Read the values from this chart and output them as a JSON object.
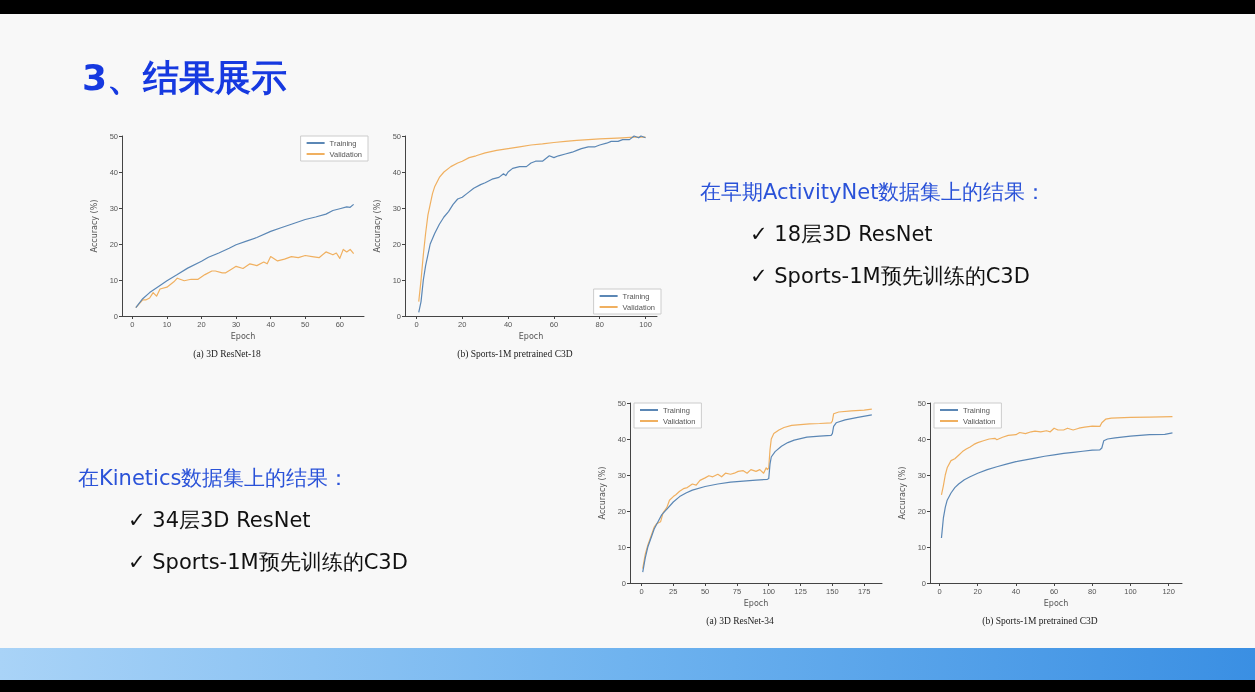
{
  "chart_data": [
    {
      "type": "other",
      "title": "3、结果展示"
    },
    {
      "type": "line",
      "title": "(a) 3D ResNet-18",
      "xlabel": "Epoch",
      "ylabel": "Accuracy (%)",
      "xlim": [
        -3,
        67
      ],
      "xticks": [
        0,
        10,
        20,
        30,
        40,
        50,
        60
      ],
      "ylim": [
        0,
        50
      ],
      "yticks": [
        0,
        10,
        20,
        30,
        40,
        50
      ],
      "legend": "top right",
      "series": [
        {
          "name": "Training",
          "color": "#5b87b5",
          "x": [
            1,
            3,
            5,
            8,
            10,
            13,
            16,
            20,
            22,
            25,
            28,
            30,
            33,
            36,
            40,
            43,
            46,
            50,
            53,
            56,
            58,
            60,
            62,
            63,
            64
          ],
          "values": [
            2.3,
            4.8,
            6.5,
            8.5,
            9.8,
            11.5,
            13.3,
            15.2,
            16.3,
            17.5,
            18.8,
            19.8,
            20.8,
            21.8,
            23.5,
            24.5,
            25.5,
            26.8,
            27.5,
            28.3,
            29.3,
            29.8,
            30.3,
            30.2,
            31
          ]
        },
        {
          "name": "Validation",
          "color": "#f0b060",
          "x": [
            1,
            3,
            4,
            5,
            6,
            7,
            8,
            10,
            12,
            13,
            15,
            17,
            19,
            21,
            23,
            24,
            26,
            27,
            29,
            30,
            32,
            34,
            36,
            38,
            39,
            40,
            42,
            44,
            46,
            48,
            50,
            52,
            54,
            56,
            58,
            59,
            60,
            61,
            62,
            63,
            64
          ],
          "values": [
            2.3,
            4.5,
            4.5,
            5,
            6.5,
            5.5,
            7.5,
            8,
            9.5,
            10.5,
            9.8,
            10.2,
            10.2,
            11.5,
            12.5,
            12.5,
            12,
            12,
            13.2,
            13.8,
            13.2,
            14.5,
            14,
            15,
            14.5,
            16.5,
            15.3,
            15.8,
            16.5,
            16.2,
            16.8,
            16.5,
            16.2,
            17.8,
            17,
            17.5,
            16,
            18.5,
            17.8,
            18.5,
            17.3
          ]
        }
      ]
    },
    {
      "type": "line",
      "title": "(b) Sports-1M pretrained C3D",
      "xlabel": "Epoch",
      "ylabel": "Accuracy (%)",
      "xlim": [
        -5,
        105
      ],
      "xticks": [
        0,
        20,
        40,
        60,
        80,
        100
      ],
      "ylim": [
        0,
        50
      ],
      "yticks": [
        0,
        10,
        20,
        30,
        40,
        50
      ],
      "legend": "bottom right",
      "series": [
        {
          "name": "Training",
          "color": "#5b87b5",
          "x": [
            1,
            2,
            3,
            4,
            5,
            6,
            8,
            10,
            12,
            14,
            16,
            18,
            20,
            22,
            25,
            28,
            30,
            33,
            36,
            38,
            39,
            40,
            42,
            45,
            48,
            50,
            52,
            55,
            58,
            60,
            62,
            65,
            68,
            70,
            72,
            75,
            78,
            80,
            83,
            85,
            88,
            90,
            93,
            95,
            97,
            98,
            100
          ],
          "values": [
            1,
            4,
            10,
            14,
            17,
            20,
            23,
            25.5,
            27.5,
            29,
            31,
            32.5,
            33,
            34,
            35.5,
            36.5,
            37,
            38,
            38.5,
            39.5,
            39,
            40,
            41,
            41.5,
            41.5,
            42.5,
            43,
            43,
            44.5,
            44,
            44.5,
            45,
            45.5,
            46,
            46.5,
            47,
            47,
            47.5,
            48,
            48.5,
            48.5,
            49,
            49,
            50,
            49.5,
            50,
            49.5
          ]
        },
        {
          "name": "Validation",
          "color": "#f0b060",
          "x": [
            1,
            2,
            3,
            4,
            5,
            6,
            7,
            8,
            10,
            12,
            15,
            18,
            20,
            23,
            26,
            30,
            35,
            40,
            45,
            50,
            55,
            60,
            65,
            70,
            80,
            90,
            95,
            100
          ],
          "values": [
            4,
            10,
            17,
            23,
            28,
            31,
            34,
            36,
            38.5,
            40,
            41.5,
            42.5,
            43,
            44,
            44.5,
            45.3,
            46,
            46.5,
            47,
            47.5,
            47.8,
            48.2,
            48.5,
            48.8,
            49.2,
            49.5,
            49.7,
            49.7
          ]
        }
      ]
    },
    {
      "type": "other",
      "title": "在早期ActivityNet数据集上的结果：",
      "annotations": [
        "✓ 18层3D ResNet",
        "✓ Sports-1M预先训练的C3D"
      ]
    },
    {
      "type": "other",
      "title": "在Kinetics数据集上的结果：",
      "annotations": [
        "✓ 34层3D ResNet",
        "✓ Sports-1M预先训练的C3D"
      ]
    },
    {
      "type": "line",
      "title": "(a) 3D ResNet-34",
      "xlabel": "Epoch",
      "ylabel": "Accuracy (%)",
      "xlim": [
        -9,
        189
      ],
      "xticks": [
        0,
        25,
        50,
        75,
        100,
        125,
        150,
        175
      ],
      "ylim": [
        0,
        50
      ],
      "yticks": [
        0,
        10,
        20,
        30,
        40,
        50
      ],
      "legend": "top left",
      "series": [
        {
          "name": "Training",
          "color": "#5b87b5",
          "x": [
            1,
            3,
            5,
            8,
            10,
            13,
            16,
            20,
            25,
            30,
            35,
            40,
            50,
            60,
            70,
            80,
            90,
            99,
            100,
            101,
            102,
            105,
            110,
            115,
            120,
            125,
            130,
            140,
            149,
            150,
            151,
            153,
            160,
            170,
            181
          ],
          "values": [
            3,
            7,
            10,
            13,
            15,
            17,
            19,
            20.5,
            22.5,
            24,
            25,
            25.8,
            26.8,
            27.5,
            28,
            28.3,
            28.6,
            28.8,
            29,
            33,
            35,
            36.5,
            38,
            39,
            39.7,
            40.1,
            40.5,
            40.8,
            41,
            41.5,
            43.5,
            44.5,
            45.3,
            46,
            46.7
          ]
        },
        {
          "name": "Validation",
          "color": "#f0b060",
          "x": [
            1,
            3,
            5,
            8,
            10,
            12,
            15,
            17,
            20,
            22,
            25,
            27,
            30,
            33,
            36,
            40,
            43,
            46,
            50,
            53,
            56,
            60,
            63,
            66,
            70,
            73,
            76,
            80,
            83,
            86,
            90,
            93,
            96,
            98,
            99,
            100,
            101,
            102,
            104,
            108,
            112,
            118,
            125,
            132,
            140,
            149,
            150,
            151,
            155,
            165,
            175,
            181
          ],
          "values": [
            4,
            8,
            10.5,
            13.5,
            15.5,
            16.5,
            17,
            19.5,
            21,
            23,
            24,
            24.5,
            25.5,
            26.2,
            26.5,
            27.5,
            27.2,
            28.5,
            29.2,
            29.8,
            29.5,
            30.2,
            29.5,
            30.5,
            30.2,
            30.5,
            31,
            31.2,
            30.5,
            31.5,
            31,
            31.5,
            30.5,
            32,
            31.5,
            32,
            37,
            40,
            41.5,
            42.5,
            43.2,
            43.8,
            44,
            44.2,
            44.3,
            44.5,
            45,
            47,
            47.5,
            47.8,
            48,
            48.3
          ]
        }
      ]
    },
    {
      "type": "line",
      "title": "(b) Sports-1M pretrained C3D",
      "xlabel": "Epoch",
      "ylabel": "Accuracy (%)",
      "xlim": [
        -5,
        127
      ],
      "xticks": [
        0,
        20,
        40,
        60,
        80,
        100,
        120
      ],
      "ylim": [
        0,
        50
      ],
      "yticks": [
        0,
        10,
        20,
        30,
        40,
        50
      ],
      "legend": "top left",
      "series": [
        {
          "name": "Training",
          "color": "#5b87b5",
          "x": [
            1,
            2,
            3,
            4,
            6,
            8,
            10,
            13,
            16,
            20,
            25,
            30,
            35,
            40,
            45,
            50,
            55,
            60,
            65,
            70,
            75,
            80,
            84,
            85,
            86,
            88,
            92,
            100,
            110,
            118,
            122
          ],
          "values": [
            12.5,
            18,
            21,
            23,
            25,
            26.5,
            27.5,
            28.7,
            29.5,
            30.5,
            31.5,
            32.3,
            33,
            33.7,
            34.2,
            34.7,
            35.2,
            35.6,
            36,
            36.3,
            36.6,
            36.9,
            37,
            37.5,
            39.5,
            40,
            40.3,
            40.8,
            41.2,
            41.3,
            41.7
          ]
        },
        {
          "name": "Validation",
          "color": "#f0b060",
          "x": [
            1,
            2,
            3,
            4,
            6,
            8,
            10,
            12,
            14,
            16,
            18,
            20,
            23,
            26,
            29,
            30,
            33,
            36,
            40,
            42,
            45,
            48,
            50,
            53,
            56,
            58,
            60,
            62,
            65,
            67,
            70,
            73,
            76,
            80,
            84,
            85,
            87,
            90,
            100,
            110,
            122
          ],
          "values": [
            24.5,
            27,
            30,
            32,
            34,
            34.5,
            35.5,
            36.5,
            37.2,
            37.8,
            38.5,
            39,
            39.5,
            40,
            40.2,
            39.8,
            40.5,
            41,
            41.2,
            41.8,
            41.5,
            42,
            42.2,
            42,
            42.3,
            42,
            43,
            42.5,
            42.5,
            43,
            42.5,
            43,
            43.3,
            43.6,
            43.5,
            44.5,
            45.5,
            45.8,
            46,
            46.1,
            46.2
          ]
        }
      ]
    }
  ]
}
